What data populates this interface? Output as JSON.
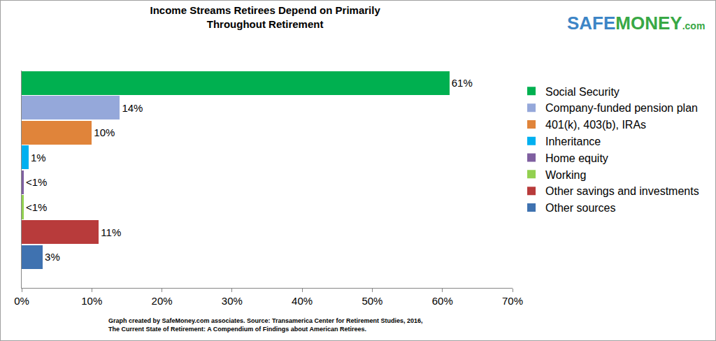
{
  "chart_data": {
    "type": "bar",
    "title": "Income Streams Retirees Depend on Primarily Throughout Retirement",
    "orientation": "horizontal",
    "categories": [
      "Social Security",
      "Company-funded pension plan",
      "401(k), 403(b), IRAs",
      "Inheritance",
      "Home equity",
      "Working",
      "Other savings and investments",
      "Other sources"
    ],
    "values": [
      61,
      14,
      10,
      1,
      0.3,
      0.3,
      11,
      3
    ],
    "value_labels": [
      "61%",
      "14%",
      "10%",
      "1%",
      "<1%",
      "<1%",
      "11%",
      "3%"
    ],
    "colors": [
      "#00b050",
      "#95a8da",
      "#e0843a",
      "#00b0f0",
      "#7f5fa0",
      "#92d050",
      "#b83b3b",
      "#3f72b0"
    ],
    "xlim": [
      0,
      70
    ],
    "xticks": [
      {
        "value": 0,
        "label": "0%"
      },
      {
        "value": 10,
        "label": "10%"
      },
      {
        "value": 20,
        "label": "20%"
      },
      {
        "value": 30,
        "label": "30%"
      },
      {
        "value": 40,
        "label": "40%"
      },
      {
        "value": 50,
        "label": "50%"
      },
      {
        "value": 60,
        "label": "60%"
      },
      {
        "value": 70,
        "label": "70%"
      }
    ],
    "grid": false,
    "data_labels": true,
    "legend": "right",
    "tick_labels": "x",
    "logo": [
      "SAFE",
      "MONEY",
      ".com"
    ],
    "annotations": [
      "Graph created by SafeMoney.com associates. Source: Transamerica Center for Retirement Studies, 2016,",
      "The Current State of Retirement: A Compendium of Findings about American Retirees."
    ]
  }
}
